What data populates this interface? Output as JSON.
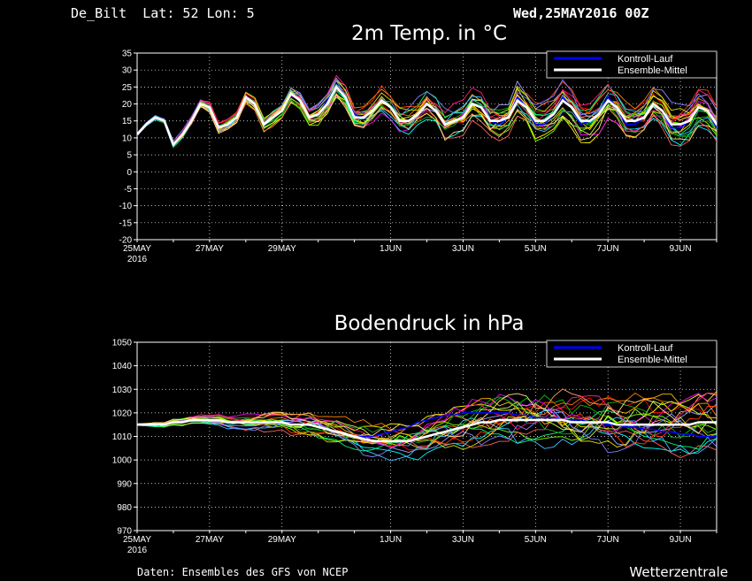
{
  "header": {
    "location": "De_Bilt  Lat: 52 Lon: 5",
    "run": "Wed,25MAY2016 00Z"
  },
  "footer": {
    "source": "Daten: Ensembles des GFS von NCEP",
    "brand": "Wetterzentrale"
  },
  "legend": {
    "control": "Kontroll-Lauf",
    "mean": "Ensemble-Mittel"
  },
  "colors": {
    "control": "#0000ff",
    "mean": "#ffffff",
    "members": [
      "#ff0000",
      "#00c800",
      "#ffff00",
      "#ff8000",
      "#00ffff",
      "#ff00ff",
      "#80ff00",
      "#ff6060",
      "#a0a0ff",
      "#ffc000",
      "#00ff80",
      "#ff4000",
      "#c0ff40",
      "#40c0ff",
      "#ffa060",
      "#e0e000",
      "#20a020",
      "#ff2080",
      "#8080ff",
      "#ffe080"
    ]
  },
  "xaxis": {
    "days_start": "25MAY2016",
    "ticks": [
      {
        "day": 0,
        "label": "25MAY",
        "sub": "2016"
      },
      {
        "day": 2,
        "label": "27MAY",
        "sub": ""
      },
      {
        "day": 4,
        "label": "29MAY",
        "sub": ""
      },
      {
        "day": 7,
        "label": "1JUN",
        "sub": ""
      },
      {
        "day": 9,
        "label": "3JUN",
        "sub": ""
      },
      {
        "day": 11,
        "label": "5JUN",
        "sub": ""
      },
      {
        "day": 13,
        "label": "7JUN",
        "sub": ""
      },
      {
        "day": 15,
        "label": "9JUN",
        "sub": ""
      }
    ]
  },
  "chart_data": [
    {
      "type": "line",
      "title": "2m Temp. in °C",
      "ylim": [
        -20,
        35
      ],
      "yticks": [
        -20,
        -15,
        -10,
        -5,
        0,
        5,
        10,
        15,
        20,
        25,
        30,
        35
      ],
      "xlim_days": [
        0,
        16
      ],
      "grid": true,
      "legend_position": "top-right",
      "step_hours": 6,
      "series": [
        {
          "role": "mean",
          "values": [
            11,
            14,
            16,
            15,
            8,
            11,
            15,
            20,
            19,
            13,
            14,
            16,
            22,
            20,
            14,
            16,
            18,
            23,
            21,
            16,
            17,
            20,
            25,
            22,
            16,
            16,
            18,
            21,
            19,
            15,
            15,
            17,
            20,
            18,
            14,
            15,
            16,
            20,
            19,
            15,
            15,
            16,
            21,
            19,
            15,
            15,
            17,
            21,
            19,
            15,
            15,
            17,
            21,
            19,
            15,
            15,
            16,
            20,
            18,
            14,
            14,
            15,
            19,
            18,
            14,
            14,
            15,
            19,
            17,
            14,
            14,
            15,
            20,
            18,
            14,
            14,
            15,
            19,
            17,
            14,
            14,
            15,
            19,
            18,
            15,
            15,
            15,
            19,
            17,
            15,
            15,
            16,
            19,
            17,
            14,
            14,
            15,
            18,
            17,
            14,
            14,
            15,
            19,
            17,
            15
          ]
        },
        {
          "role": "control",
          "values": [
            11,
            14,
            16,
            15,
            8,
            11,
            15,
            20,
            19,
            13,
            14,
            16,
            22,
            20,
            14,
            16,
            18,
            23,
            21,
            16,
            17,
            21,
            25,
            22,
            17,
            16,
            18,
            21,
            19,
            15,
            15,
            17,
            20,
            18,
            14,
            15,
            16,
            20,
            19,
            15,
            14,
            16,
            22,
            19,
            14,
            14,
            17,
            22,
            19,
            14,
            15,
            17,
            22,
            19,
            14,
            14,
            16,
            20,
            18,
            13,
            13,
            15,
            19,
            18,
            13,
            13,
            15,
            20,
            17,
            13,
            13,
            15,
            21,
            18,
            13,
            13,
            15,
            20,
            17,
            13,
            13,
            15,
            20,
            18,
            14,
            14,
            15,
            20,
            17,
            14,
            14,
            16,
            20,
            17,
            13,
            13,
            15,
            19,
            17,
            13,
            13,
            15,
            19,
            17,
            14
          ]
        }
      ]
    },
    {
      "type": "line",
      "title": "Bodendruck in hPa",
      "ylim": [
        970,
        1050
      ],
      "yticks": [
        970,
        980,
        990,
        1000,
        1010,
        1020,
        1030,
        1040,
        1050
      ],
      "xlim_days": [
        0,
        16
      ],
      "grid": true,
      "legend_position": "top-right",
      "step_hours": 6,
      "series": [
        {
          "role": "mean",
          "values": [
            1015,
            1015,
            1015,
            1015,
            1016,
            1016,
            1017,
            1017,
            1017,
            1017,
            1016,
            1016,
            1016,
            1016,
            1016,
            1016,
            1016,
            1015,
            1015,
            1015,
            1014,
            1013,
            1012,
            1011,
            1010,
            1009,
            1008,
            1008,
            1008,
            1008,
            1008,
            1009,
            1010,
            1011,
            1012,
            1013,
            1014,
            1015,
            1016,
            1016,
            1017,
            1017,
            1017,
            1017,
            1017,
            1017,
            1017,
            1017,
            1016,
            1016,
            1016,
            1016,
            1016,
            1015,
            1015,
            1015,
            1015,
            1015,
            1015,
            1015,
            1015,
            1015,
            1016,
            1016,
            1016,
            1016,
            1016,
            1016,
            1016,
            1016,
            1017,
            1017,
            1017,
            1017,
            1017,
            1017,
            1017,
            1018,
            1018,
            1018,
            1018,
            1018,
            1017,
            1017,
            1017,
            1017,
            1017,
            1017,
            1016,
            1016,
            1016,
            1016,
            1016,
            1016,
            1015,
            1015,
            1015,
            1015,
            1015,
            1014,
            1014,
            1014,
            1014,
            1014,
            1014
          ]
        },
        {
          "role": "control",
          "values": [
            1015,
            1015,
            1015,
            1015,
            1016,
            1016,
            1017,
            1017,
            1017,
            1017,
            1016,
            1016,
            1016,
            1016,
            1016,
            1016,
            1016,
            1015,
            1015,
            1015,
            1014,
            1013,
            1012,
            1011,
            1010,
            1010,
            1010,
            1011,
            1012,
            1013,
            1014,
            1016,
            1017,
            1018,
            1019,
            1019,
            1020,
            1020,
            1020,
            1020,
            1020,
            1020,
            1019,
            1019,
            1018,
            1018,
            1018,
            1017,
            1017,
            1017,
            1016,
            1016,
            1015,
            1015,
            1014,
            1014,
            1013,
            1013,
            1012,
            1012,
            1011,
            1011,
            1010,
            1010,
            1010,
            1010,
            1010,
            1010,
            1010,
            1010,
            1011,
            1011,
            1011,
            1011,
            1010,
            1010,
            1010,
            1010,
            1010,
            1010,
            1009,
            1009,
            1009,
            1009,
            1009,
            1009,
            1009,
            1009,
            1008,
            1008,
            1008,
            1008,
            1008,
            1008,
            1008,
            1008,
            1008,
            1008,
            1007,
            1007,
            1007,
            1007,
            1007,
            1007,
            1007
          ]
        }
      ]
    }
  ]
}
